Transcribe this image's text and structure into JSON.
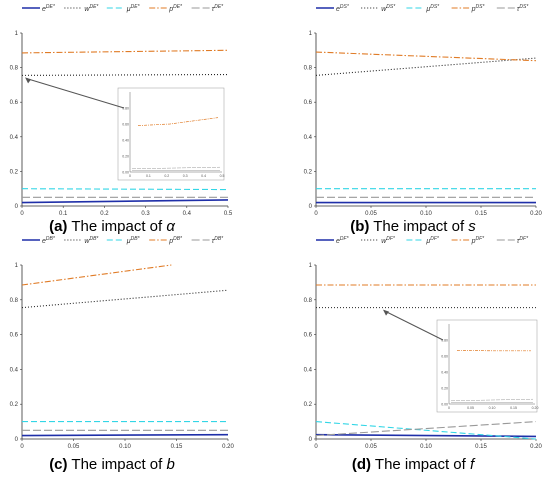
{
  "chart_data": [
    {
      "type": "line",
      "caption": {
        "letter": "(a)",
        "text": " The impact of ",
        "symbol": "α"
      },
      "legend": [
        {
          "base": "e",
          "sup": "DE*"
        },
        {
          "base": "w",
          "sup": "DE*"
        },
        {
          "base": "μ",
          "sup": "DE*"
        },
        {
          "base": "p",
          "sup": "DE*"
        },
        {
          "base": "τ",
          "sup": "DE*"
        }
      ],
      "xlim": [
        0,
        0.5
      ],
      "ylim": [
        0,
        1
      ],
      "xticks": [
        0,
        0.1,
        0.2,
        0.3,
        0.4,
        0.5
      ],
      "xtick_labels": [
        "0",
        "0.1",
        "0.2",
        "0.3",
        "0.4",
        "0.5"
      ],
      "yticks": [
        0,
        0.2,
        0.4,
        0.6,
        0.8,
        1
      ],
      "ytick_labels": [
        "0",
        "0.2",
        "0.4",
        "0.6",
        "0.8",
        "1"
      ],
      "series": [
        {
          "x": [
            0,
            0.5
          ],
          "y": [
            0.02,
            0.035
          ],
          "color": "#1f2fa8",
          "style": "solid"
        },
        {
          "x": [
            0,
            0.5
          ],
          "y": [
            0.755,
            0.76
          ],
          "color": "#222222",
          "style": "dotted"
        },
        {
          "x": [
            0,
            0.5
          ],
          "y": [
            0.1,
            0.095
          ],
          "color": "#33d6e6",
          "style": "dashed"
        },
        {
          "x": [
            0,
            0.5
          ],
          "y": [
            0.885,
            0.9
          ],
          "color": "#e07b26",
          "style": "dashdot"
        },
        {
          "x": [
            0,
            0.5
          ],
          "y": [
            0.05,
            0.05
          ],
          "color": "#999999",
          "style": "longdash"
        }
      ],
      "inset": {
        "yticks": [
          0.8,
          0.6,
          0.4,
          0.2,
          0
        ],
        "ytick_labels": [
          "0.80",
          "0.60",
          "0.40",
          "0.20",
          "0.00"
        ],
        "xtick_labels": [
          "0",
          "0.1",
          "0.2",
          "0.3",
          "0.4",
          "0.5"
        ]
      }
    },
    {
      "type": "line",
      "caption": {
        "letter": "(b)",
        "text": " The impact of ",
        "symbol": "s"
      },
      "legend": [
        {
          "base": "e",
          "sup": "DS*"
        },
        {
          "base": "w",
          "sup": "DS*"
        },
        {
          "base": "μ",
          "sup": "DS*"
        },
        {
          "base": "p",
          "sup": "DS*"
        },
        {
          "base": "τ",
          "sup": "DS*"
        }
      ],
      "xlim": [
        0,
        0.2
      ],
      "ylim": [
        0,
        1
      ],
      "xticks": [
        0,
        0.05,
        0.1,
        0.15,
        0.2
      ],
      "xtick_labels": [
        "0",
        "0.05",
        "0.10",
        "0.15",
        "0.20"
      ],
      "yticks": [
        0,
        0.2,
        0.4,
        0.6,
        0.8,
        1
      ],
      "ytick_labels": [
        "0",
        "0.2",
        "0.4",
        "0.6",
        "0.8",
        "1"
      ],
      "series": [
        {
          "x": [
            0,
            0.2
          ],
          "y": [
            0.02,
            0.02
          ],
          "color": "#1f2fa8",
          "style": "solid"
        },
        {
          "x": [
            0,
            0.2
          ],
          "y": [
            0.755,
            0.855
          ],
          "color": "#222222",
          "style": "dotted"
        },
        {
          "x": [
            0,
            0.2
          ],
          "y": [
            0.1,
            0.1
          ],
          "color": "#33d6e6",
          "style": "dashed"
        },
        {
          "x": [
            0,
            0.2
          ],
          "y": [
            0.89,
            0.84
          ],
          "color": "#e07b26",
          "style": "dashdot"
        },
        {
          "x": [
            0,
            0.2
          ],
          "y": [
            0.05,
            0.05
          ],
          "color": "#999999",
          "style": "longdash"
        }
      ]
    },
    {
      "type": "line",
      "caption": {
        "letter": "(c)",
        "text": " The impact of ",
        "symbol": "b"
      },
      "legend": [
        {
          "base": "e",
          "sup": "DB*"
        },
        {
          "base": "w",
          "sup": "DB*"
        },
        {
          "base": "μ",
          "sup": "DB*"
        },
        {
          "base": "p",
          "sup": "DB*"
        },
        {
          "base": "τ",
          "sup": "DB*"
        }
      ],
      "xlim": [
        0,
        0.2
      ],
      "ylim": [
        0,
        1
      ],
      "xticks": [
        0,
        0.05,
        0.1,
        0.15,
        0.2
      ],
      "xtick_labels": [
        "0",
        "0.05",
        "0.10",
        "0.15",
        "0.20"
      ],
      "yticks": [
        0,
        0.2,
        0.4,
        0.6,
        0.8,
        1
      ],
      "ytick_labels": [
        "0",
        "0.2",
        "0.4",
        "0.6",
        "0.8",
        "1"
      ],
      "series": [
        {
          "x": [
            0,
            0.2
          ],
          "y": [
            0.02,
            0.025
          ],
          "color": "#1f2fa8",
          "style": "solid"
        },
        {
          "x": [
            0,
            0.2
          ],
          "y": [
            0.755,
            0.855
          ],
          "color": "#222222",
          "style": "dotted"
        },
        {
          "x": [
            0,
            0.2
          ],
          "y": [
            0.1,
            0.1
          ],
          "color": "#33d6e6",
          "style": "dashed"
        },
        {
          "x": [
            0,
            0.145
          ],
          "y": [
            0.885,
            1.0
          ],
          "color": "#e07b26",
          "style": "dashdot"
        },
        {
          "x": [
            0,
            0.2
          ],
          "y": [
            0.05,
            0.05
          ],
          "color": "#999999",
          "style": "longdash"
        }
      ]
    },
    {
      "type": "line",
      "caption": {
        "letter": "(d)",
        "text": " The impact of ",
        "symbol": "f"
      },
      "legend": [
        {
          "base": "e",
          "sup": "DF*"
        },
        {
          "base": "w",
          "sup": "DF*"
        },
        {
          "base": "μ",
          "sup": "DF*"
        },
        {
          "base": "p",
          "sup": "DF*"
        },
        {
          "base": "τ",
          "sup": "DF*"
        }
      ],
      "xlim": [
        0,
        0.2
      ],
      "ylim": [
        0,
        1
      ],
      "xticks": [
        0,
        0.05,
        0.1,
        0.15,
        0.2
      ],
      "xtick_labels": [
        "0",
        "0.05",
        "0.10",
        "0.15",
        "0.20"
      ],
      "yticks": [
        0,
        0.2,
        0.4,
        0.6,
        0.8,
        1
      ],
      "ytick_labels": [
        "0",
        "0.2",
        "0.4",
        "0.6",
        "0.8",
        "1"
      ],
      "series": [
        {
          "x": [
            0,
            0.2
          ],
          "y": [
            0.025,
            0.015
          ],
          "color": "#1f2fa8",
          "style": "solid"
        },
        {
          "x": [
            0,
            0.2
          ],
          "y": [
            0.755,
            0.755
          ],
          "color": "#222222",
          "style": "dotted"
        },
        {
          "x": [
            0,
            0.2
          ],
          "y": [
            0.1,
            0.0
          ],
          "color": "#33d6e6",
          "style": "dashed"
        },
        {
          "x": [
            0,
            0.2
          ],
          "y": [
            0.885,
            0.885
          ],
          "color": "#e07b26",
          "style": "dashdot"
        },
        {
          "x": [
            0,
            0.2
          ],
          "y": [
            0.02,
            0.1
          ],
          "color": "#999999",
          "style": "longdash"
        }
      ],
      "inset": {
        "yticks": [
          0.8,
          0.6,
          0.4,
          0.2,
          0
        ],
        "ytick_labels": [
          "0.80",
          "0.60",
          "0.40",
          "0.20",
          "0.00"
        ],
        "xtick_labels": [
          "0",
          "0.05",
          "0.10",
          "0.15",
          "0.20"
        ]
      }
    }
  ]
}
